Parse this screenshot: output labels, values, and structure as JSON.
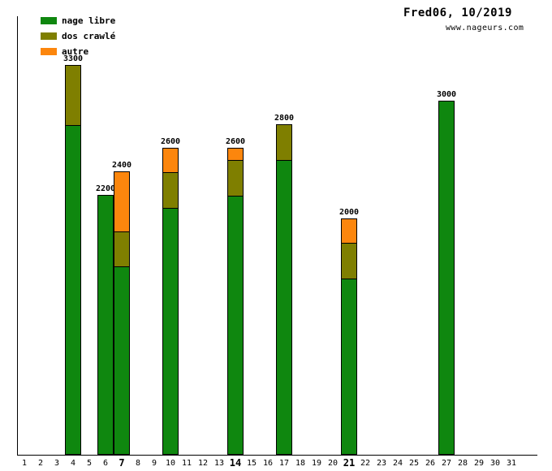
{
  "header": {
    "title": "Fred06, 10/2019",
    "site": "www.nageurs.com"
  },
  "legend": [
    {
      "label": "nage libre",
      "color": "#0f870f"
    },
    {
      "label": "dos crawlé",
      "color": "#7f7f00"
    },
    {
      "label": "autre",
      "color": "#fc860d"
    }
  ],
  "chart_data": {
    "type": "bar",
    "stacked": true,
    "title": "Fred06, 10/2019",
    "categories": [
      1,
      2,
      3,
      4,
      5,
      6,
      7,
      8,
      9,
      10,
      11,
      12,
      13,
      14,
      15,
      16,
      17,
      18,
      19,
      20,
      21,
      22,
      23,
      24,
      25,
      26,
      27,
      28,
      29,
      30,
      31
    ],
    "bold_categories": [
      7,
      14,
      21
    ],
    "stack_order": [
      "nage libre",
      "dos crawlé",
      "autre"
    ],
    "y_max_value": 3300,
    "bars": [
      {
        "day": 4,
        "total": 3300,
        "segments": {
          "nage libre": 2800,
          "dos crawlé": 500
        }
      },
      {
        "day": 6,
        "total": 2200,
        "segments": {
          "nage libre": 2200
        }
      },
      {
        "day": 7,
        "total": 2400,
        "segments": {
          "nage libre": 1600,
          "dos crawlé": 300,
          "autre": 500
        }
      },
      {
        "day": 10,
        "total": 2600,
        "segments": {
          "nage libre": 2100,
          "dos crawlé": 300,
          "autre": 200
        }
      },
      {
        "day": 14,
        "total": 2600,
        "segments": {
          "nage libre": 2200,
          "dos crawlé": 300,
          "autre": 100
        }
      },
      {
        "day": 17,
        "total": 2800,
        "segments": {
          "nage libre": 2500,
          "dos crawlé": 300
        }
      },
      {
        "day": 21,
        "total": 2000,
        "segments": {
          "nage libre": 1500,
          "dos crawlé": 300,
          "autre": 200
        }
      },
      {
        "day": 27,
        "total": 3000,
        "segments": {
          "nage libre": 3000
        }
      }
    ]
  }
}
